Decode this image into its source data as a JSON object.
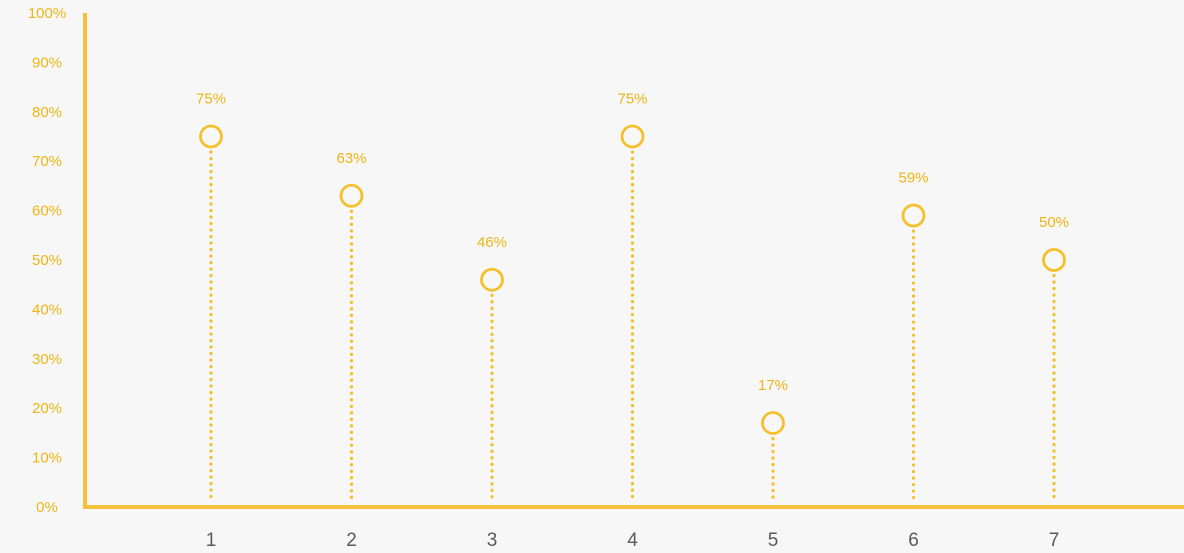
{
  "chart_data": {
    "type": "lollipop",
    "title": "",
    "xlabel": "",
    "ylabel": "",
    "categories": [
      "1",
      "2",
      "3",
      "4",
      "5",
      "6",
      "7"
    ],
    "values": [
      75,
      63,
      46,
      75,
      17,
      59,
      50
    ],
    "data_labels": [
      "75%",
      "63%",
      "46%",
      "75%",
      "17%",
      "59%",
      "50%"
    ],
    "ylim": [
      0,
      100
    ],
    "yticks": [
      "0%",
      "10%",
      "20%",
      "30%",
      "40%",
      "50%",
      "60%",
      "70%",
      "80%",
      "90%",
      "100%"
    ],
    "grid": false,
    "legend": "none"
  },
  "colors": {
    "axis": "#f6c13a",
    "marker": "#f4c02c",
    "label": "#eeb515",
    "tick_x": "#5a5a5a",
    "background": "#f7f7f7"
  }
}
